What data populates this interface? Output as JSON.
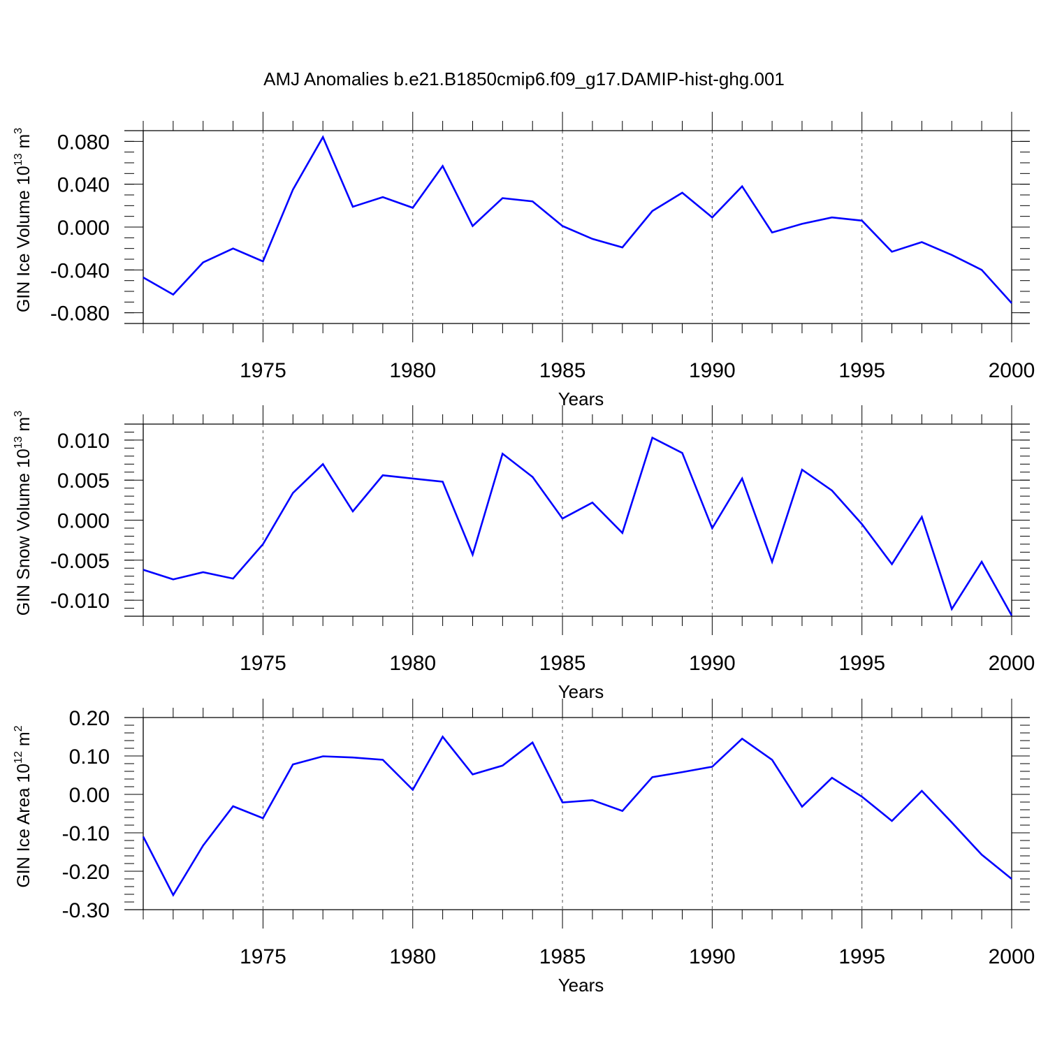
{
  "title": "AMJ Anomalies b.e21.B1850cmip6.f09_g17.DAMIP-hist-ghg.001",
  "colors": {
    "line": "#0000ff",
    "axis": "#000000",
    "grid": "#555555"
  },
  "chart_data": [
    {
      "type": "line",
      "title": "",
      "xlabel": "Years",
      "ylabel": {
        "text": "GIN Ice Volume 10",
        "exponent": "13",
        "unit": " m",
        "unit_exponent": "3"
      },
      "xlim": [
        1971,
        2000
      ],
      "ylim": [
        -0.09,
        0.09
      ],
      "x_ticks": [
        "1975",
        "1980",
        "1985",
        "1990",
        "1995",
        "2000"
      ],
      "y_ticks": [
        {
          "value": 0.08,
          "label": "0.080"
        },
        {
          "value": 0.04,
          "label": "0.040"
        },
        {
          "value": 0.0,
          "label": "0.000"
        },
        {
          "value": -0.04,
          "label": "-0.040"
        },
        {
          "value": -0.08,
          "label": "-0.080"
        }
      ],
      "y_minor_step": 0.01,
      "grid": "vertical dashed at major x ticks",
      "x": [
        1971,
        1972,
        1973,
        1974,
        1975,
        1976,
        1977,
        1978,
        1979,
        1980,
        1981,
        1982,
        1983,
        1984,
        1985,
        1986,
        1987,
        1988,
        1989,
        1990,
        1991,
        1992,
        1993,
        1994,
        1995,
        1996,
        1997,
        1998,
        1999,
        2000
      ],
      "series": [
        {
          "values": [
            -0.047,
            -0.063,
            -0.033,
            -0.02,
            -0.032,
            0.035,
            0.084,
            0.019,
            0.028,
            0.018,
            0.057,
            0.001,
            0.027,
            0.024,
            0.001,
            -0.011,
            -0.019,
            0.015,
            0.032,
            0.009,
            0.038,
            -0.005,
            0.003,
            0.009,
            0.006,
            -0.023,
            -0.014,
            -0.026,
            -0.04,
            -0.071
          ]
        }
      ]
    },
    {
      "type": "line",
      "title": "",
      "xlabel": "Years",
      "ylabel": {
        "text": "GIN Snow Volume 10",
        "exponent": "13",
        "unit": " m",
        "unit_exponent": "3"
      },
      "xlim": [
        1971,
        2000
      ],
      "ylim": [
        -0.012,
        0.012
      ],
      "x_ticks": [
        "1975",
        "1980",
        "1985",
        "1990",
        "1995",
        "2000"
      ],
      "y_ticks": [
        {
          "value": 0.01,
          "label": "0.010"
        },
        {
          "value": 0.005,
          "label": "0.005"
        },
        {
          "value": 0.0,
          "label": "0.000"
        },
        {
          "value": -0.005,
          "label": "-0.005"
        },
        {
          "value": -0.01,
          "label": "-0.010"
        }
      ],
      "y_minor_step": 0.001,
      "grid": "vertical dashed at major x ticks",
      "x": [
        1971,
        1972,
        1973,
        1974,
        1975,
        1976,
        1977,
        1978,
        1979,
        1980,
        1981,
        1982,
        1983,
        1984,
        1985,
        1986,
        1987,
        1988,
        1989,
        1990,
        1991,
        1992,
        1993,
        1994,
        1995,
        1996,
        1997,
        1998,
        1999,
        2000
      ],
      "series": [
        {
          "values": [
            -0.0062,
            -0.0074,
            -0.0065,
            -0.0073,
            -0.003,
            0.0034,
            0.007,
            0.0011,
            0.0056,
            0.0052,
            0.0048,
            -0.0043,
            0.0083,
            0.0054,
            0.0002,
            0.0022,
            -0.0016,
            0.0103,
            0.0084,
            -0.001,
            0.0052,
            -0.0052,
            0.0063,
            0.0037,
            -0.0005,
            -0.0055,
            0.0004,
            -0.0111,
            -0.0052,
            -0.0119
          ]
        }
      ]
    },
    {
      "type": "line",
      "title": "",
      "xlabel": "Years",
      "ylabel": {
        "text": "GIN Ice Area 10",
        "exponent": "12",
        "unit": " m",
        "unit_exponent": "2"
      },
      "xlim": [
        1971,
        2000
      ],
      "ylim": [
        -0.3,
        0.2
      ],
      "x_ticks": [
        "1975",
        "1980",
        "1985",
        "1990",
        "1995",
        "2000"
      ],
      "y_ticks": [
        {
          "value": 0.2,
          "label": "0.20"
        },
        {
          "value": 0.1,
          "label": "0.10"
        },
        {
          "value": 0.0,
          "label": "0.00"
        },
        {
          "value": -0.1,
          "label": "-0.10"
        },
        {
          "value": -0.2,
          "label": "-0.20"
        },
        {
          "value": -0.3,
          "label": "-0.30"
        }
      ],
      "y_minor_step": 0.02,
      "grid": "vertical dashed at major x ticks",
      "x": [
        1971,
        1972,
        1973,
        1974,
        1975,
        1976,
        1977,
        1978,
        1979,
        1980,
        1981,
        1982,
        1983,
        1984,
        1985,
        1986,
        1987,
        1988,
        1989,
        1990,
        1991,
        1992,
        1993,
        1994,
        1995,
        1996,
        1997,
        1998,
        1999,
        2000
      ],
      "series": [
        {
          "values": [
            -0.11,
            -0.262,
            -0.133,
            -0.031,
            -0.062,
            0.078,
            0.099,
            0.096,
            0.09,
            0.012,
            0.15,
            0.052,
            0.075,
            0.135,
            -0.021,
            -0.015,
            -0.043,
            0.045,
            0.058,
            0.072,
            0.145,
            0.09,
            -0.032,
            0.043,
            -0.006,
            -0.069,
            0.009,
            -0.073,
            -0.157,
            -0.22
          ]
        }
      ]
    }
  ]
}
